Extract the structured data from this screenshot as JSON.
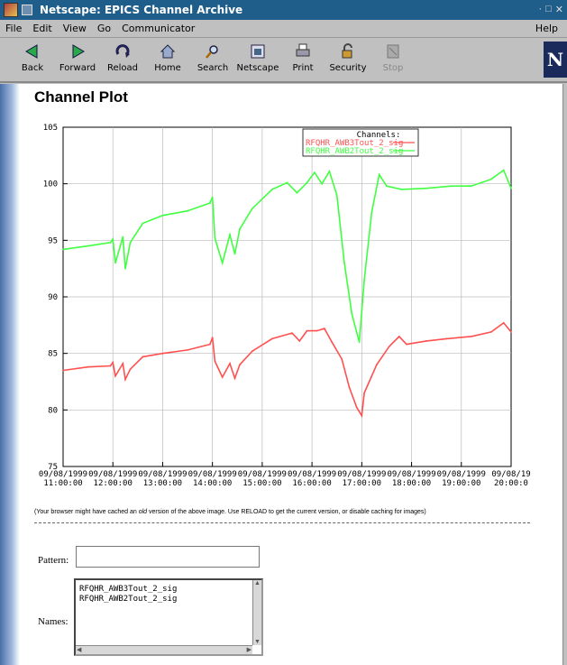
{
  "window": {
    "title": "Netscape: EPICS Channel Archive"
  },
  "menu": {
    "items": [
      "File",
      "Edit",
      "View",
      "Go",
      "Communicator"
    ],
    "help": "Help"
  },
  "toolbar": {
    "items": [
      {
        "label": "Back",
        "icon": "back-arrow-icon"
      },
      {
        "label": "Forward",
        "icon": "forward-arrow-icon"
      },
      {
        "label": "Reload",
        "icon": "reload-icon"
      },
      {
        "label": "Home",
        "icon": "home-icon"
      },
      {
        "label": "Search",
        "icon": "search-icon"
      },
      {
        "label": "Netscape",
        "icon": "netscape-icon"
      },
      {
        "label": "Print",
        "icon": "print-icon"
      },
      {
        "label": "Security",
        "icon": "lock-icon"
      },
      {
        "label": "Stop",
        "icon": "stop-icon"
      }
    ],
    "logo": "N"
  },
  "page": {
    "title": "Channel Plot",
    "cache_note_pre": "(Your browser might have cached an ",
    "cache_note_em": "old",
    "cache_note_post": " version of the above image. Use RELOAD to get the current version, or disable caching for images)",
    "pattern_label": "Pattern:",
    "pattern_value": "",
    "names_label": "Names:",
    "names": [
      "RFQHR_AWB3Tout_2_sig",
      "RFQHR_AWB2Tout_2_sig"
    ]
  },
  "chart_data": {
    "type": "line",
    "title": "",
    "xlabel": "",
    "ylabel": "",
    "ylim": [
      75,
      105
    ],
    "yticks": [
      75,
      80,
      85,
      90,
      95,
      100,
      105
    ],
    "xlim": [
      11,
      20
    ],
    "xticks": [
      {
        "x": 11,
        "date": "09/08/1999",
        "time": "11:00:00"
      },
      {
        "x": 12,
        "date": "09/08/1999",
        "time": "12:00:00"
      },
      {
        "x": 13,
        "date": "09/08/1999",
        "time": "13:00:00"
      },
      {
        "x": 14,
        "date": "09/08/1999",
        "time": "14:00:00"
      },
      {
        "x": 15,
        "date": "09/08/1999",
        "time": "15:00:00"
      },
      {
        "x": 16,
        "date": "09/08/1999",
        "time": "16:00:00"
      },
      {
        "x": 17,
        "date": "09/08/1999",
        "time": "17:00:00"
      },
      {
        "x": 18,
        "date": "09/08/1999",
        "time": "18:00:00"
      },
      {
        "x": 19,
        "date": "09/08/1999",
        "time": "19:00:00"
      },
      {
        "x": 20,
        "date": "09/08/19",
        "time": "20:00:0"
      }
    ],
    "grid": true,
    "legend": {
      "title": "Channels:",
      "position": "top-right"
    },
    "series": [
      {
        "name": "RFQHR_AWB3Tout_2_sig",
        "color": "#ff5050",
        "x": [
          11,
          11.5,
          11.95,
          12.0,
          12.05,
          12.2,
          12.25,
          12.35,
          12.6,
          13.0,
          13.5,
          13.95,
          14.0,
          14.05,
          14.2,
          14.35,
          14.45,
          14.55,
          14.8,
          15.2,
          15.6,
          15.75,
          15.9,
          16.1,
          16.25,
          16.4,
          16.6,
          16.75,
          16.9,
          17.0,
          17.05,
          17.3,
          17.55,
          17.75,
          17.9,
          18.3,
          18.7,
          19.2,
          19.6,
          19.85,
          20.0
        ],
        "y": [
          83.5,
          83.8,
          83.9,
          84.2,
          83.0,
          84.1,
          82.7,
          83.6,
          84.7,
          85.0,
          85.3,
          85.8,
          86.4,
          84.3,
          82.9,
          84.1,
          82.8,
          84.0,
          85.2,
          86.3,
          86.8,
          86.1,
          87.0,
          87.0,
          87.2,
          86.0,
          84.5,
          82.0,
          80.2,
          79.5,
          81.5,
          84.0,
          85.6,
          86.5,
          85.8,
          86.1,
          86.3,
          86.5,
          86.9,
          87.7,
          86.9
        ]
      },
      {
        "name": "RFQHR_AWB2Tout_2_sig",
        "color": "#40ff40",
        "x": [
          11,
          11.5,
          11.95,
          12.0,
          12.05,
          12.2,
          12.25,
          12.35,
          12.6,
          13.0,
          13.5,
          13.95,
          14.0,
          14.05,
          14.2,
          14.35,
          14.45,
          14.55,
          14.8,
          15.2,
          15.5,
          15.7,
          15.9,
          16.05,
          16.2,
          16.35,
          16.5,
          16.65,
          16.8,
          16.95,
          17.05,
          17.2,
          17.35,
          17.5,
          17.8,
          18.3,
          18.8,
          19.2,
          19.6,
          19.85,
          20.0
        ],
        "y": [
          94.2,
          94.5,
          94.8,
          95.1,
          93.0,
          95.3,
          92.5,
          94.8,
          96.5,
          97.2,
          97.6,
          98.3,
          98.8,
          95.2,
          93.0,
          95.5,
          93.8,
          96.0,
          97.8,
          99.5,
          100.1,
          99.2,
          100.1,
          101.0,
          100.0,
          101.1,
          99.0,
          93.0,
          88.5,
          86.0,
          91.5,
          97.5,
          100.8,
          99.8,
          99.5,
          99.6,
          99.8,
          99.8,
          100.4,
          101.2,
          99.6
        ]
      }
    ]
  }
}
